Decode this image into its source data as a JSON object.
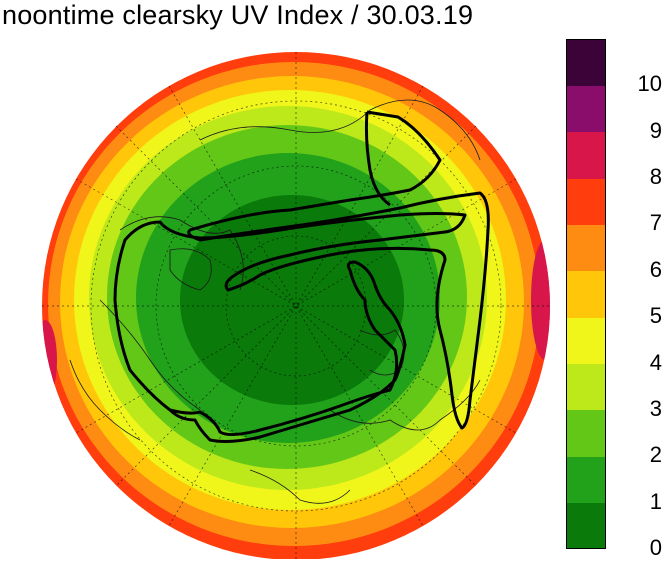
{
  "title": "noontime clearsky UV Index / 30.03.19",
  "colorbar": {
    "bins": [
      {
        "label": "0",
        "color": "#0a7a0a"
      },
      {
        "label": "1",
        "color": "#22a11b"
      },
      {
        "label": "2",
        "color": "#63c717"
      },
      {
        "label": "3",
        "color": "#bde81a"
      },
      {
        "label": "4",
        "color": "#f0f51a"
      },
      {
        "label": "5",
        "color": "#ffc60a"
      },
      {
        "label": "6",
        "color": "#ff8c12"
      },
      {
        "label": "7",
        "color": "#ff3d0d"
      },
      {
        "label": "8",
        "color": "#d8164a"
      },
      {
        "label": "9",
        "color": "#8a0d6c"
      },
      {
        "label": "10",
        "color": "#3b0338"
      }
    ]
  },
  "map": {
    "projection": "north-polar-stereographic",
    "graticule": true,
    "coastlines": true,
    "contour_line_color": "#000000"
  }
}
